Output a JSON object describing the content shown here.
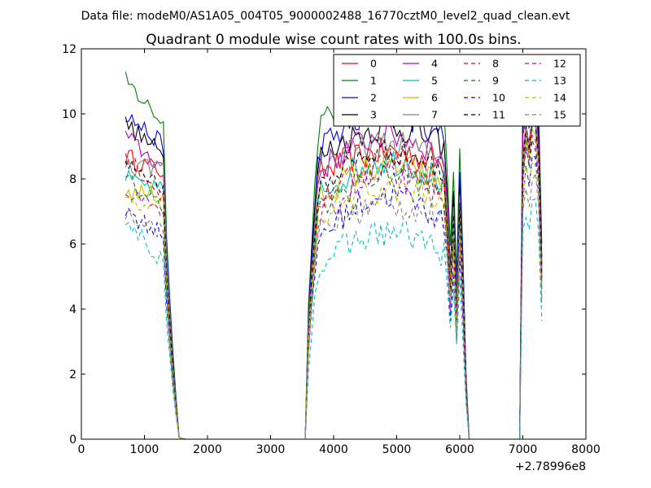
{
  "chart_data": {
    "type": "line",
    "suptitle": "Data file: modeM0/AS1A05_004T05_9000002488_16770cztM0_level2_quad_clean.evt",
    "title": "Quadrant 0 module wise count rates with 100.0s bins.",
    "xlabel": "",
    "ylabel": "",
    "xlim": [
      0,
      8000
    ],
    "ylim": [
      0,
      12
    ],
    "x_offset_label": "+2.78996e8",
    "x_ticks": [
      "0",
      "1000",
      "2000",
      "3000",
      "4000",
      "5000",
      "6000",
      "7000",
      "8000"
    ],
    "y_ticks": [
      "0",
      "2",
      "4",
      "6",
      "8",
      "10",
      "12"
    ],
    "grid": false,
    "legend_position": "top-right",
    "legend_columns": 4,
    "segments": [
      {
        "start": 700,
        "step": 50,
        "points": 12,
        "shape": "descend"
      },
      {
        "start": 1300,
        "step": 50,
        "points": 6,
        "shape": "falloff"
      },
      {
        "start": 1650,
        "step": 1850,
        "points": 2,
        "shape": "zero"
      },
      {
        "start": 3550,
        "step": 50,
        "points": 5,
        "shape": "rise"
      },
      {
        "start": 3800,
        "step": 50,
        "points": 40,
        "shape": "plateau"
      },
      {
        "start": 5800,
        "step": 50,
        "points": 8,
        "shape": "dip"
      },
      {
        "start": 6200,
        "step": 700,
        "points": 2,
        "shape": "zero"
      },
      {
        "start": 6950,
        "step": 50,
        "points": 8,
        "shape": "spike"
      }
    ],
    "series": [
      {
        "name": "0",
        "color": "#ff0000",
        "dash": "solid",
        "level": 8.2,
        "start_level": 8.7,
        "late_level": 9.0
      },
      {
        "name": "1",
        "color": "#008000",
        "dash": "solid",
        "level": 9.7,
        "start_level": 11.0,
        "late_level": 10.9
      },
      {
        "name": "2",
        "color": "#0000ff",
        "dash": "solid",
        "level": 9.0,
        "start_level": 10.0,
        "late_level": 10.2
      },
      {
        "name": "3",
        "color": "#000000",
        "dash": "solid",
        "level": 8.7,
        "start_level": 9.7,
        "late_level": 9.8
      },
      {
        "name": "4",
        "color": "#bf00bf",
        "dash": "solid",
        "level": 8.3,
        "start_level": 9.3,
        "late_level": 9.6
      },
      {
        "name": "5",
        "color": "#00bfbf",
        "dash": "solid",
        "level": 7.6,
        "start_level": 8.0,
        "late_level": 8.8
      },
      {
        "name": "6",
        "color": "#bfbf00",
        "dash": "solid",
        "level": 7.5,
        "start_level": 7.6,
        "late_level": 8.6
      },
      {
        "name": "7",
        "color": "#808080",
        "dash": "solid",
        "level": 8.4,
        "start_level": 8.3,
        "late_level": 9.2
      },
      {
        "name": "8",
        "color": "#ff0000",
        "dash": "dashed",
        "level": 7.4,
        "start_level": 8.8,
        "late_level": 8.9
      },
      {
        "name": "9",
        "color": "#008000",
        "dash": "dashed",
        "level": 7.1,
        "start_level": 8.0,
        "late_level": 8.4
      },
      {
        "name": "10",
        "color": "#0000ff",
        "dash": "dashed",
        "level": 6.3,
        "start_level": 7.0,
        "late_level": 7.8
      },
      {
        "name": "11",
        "color": "#000000",
        "dash": "dashed",
        "level": 7.8,
        "start_level": 8.5,
        "late_level": 9.1
      },
      {
        "name": "12",
        "color": "#bf00bf",
        "dash": "dashed",
        "level": 6.9,
        "start_level": 7.5,
        "late_level": 8.3
      },
      {
        "name": "13",
        "color": "#00bfbf",
        "dash": "dashed",
        "level": 5.4,
        "start_level": 6.8,
        "late_level": 6.6
      },
      {
        "name": "14",
        "color": "#bfbf00",
        "dash": "dashed",
        "level": 6.9,
        "start_level": 7.3,
        "late_level": 7.9
      },
      {
        "name": "15",
        "color": "#808080",
        "dash": "dashed",
        "level": 6.4,
        "start_level": 7.0,
        "late_level": 7.4
      }
    ]
  }
}
